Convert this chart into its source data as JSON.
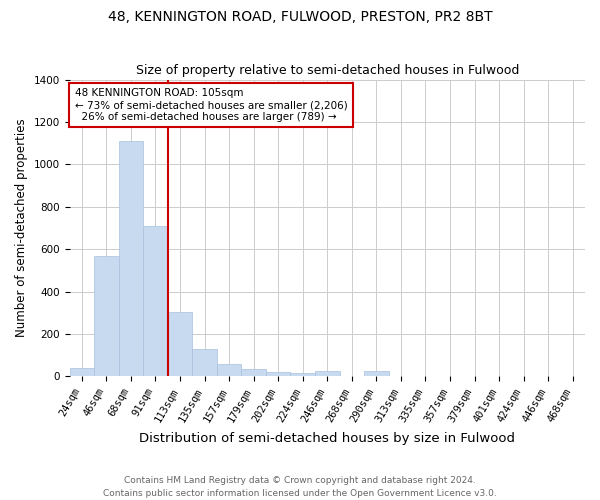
{
  "title1": "48, KENNINGTON ROAD, FULWOOD, PRESTON, PR2 8BT",
  "title2": "Size of property relative to semi-detached houses in Fulwood",
  "xlabel": "Distribution of semi-detached houses by size in Fulwood",
  "ylabel": "Number of semi-detached properties",
  "categories": [
    "24sqm",
    "46sqm",
    "68sqm",
    "91sqm",
    "113sqm",
    "135sqm",
    "157sqm",
    "179sqm",
    "202sqm",
    "224sqm",
    "246sqm",
    "268sqm",
    "290sqm",
    "313sqm",
    "335sqm",
    "357sqm",
    "379sqm",
    "401sqm",
    "424sqm",
    "446sqm",
    "468sqm"
  ],
  "values": [
    40,
    570,
    1110,
    710,
    305,
    130,
    60,
    35,
    20,
    15,
    25,
    0,
    25,
    0,
    0,
    0,
    0,
    0,
    0,
    0,
    0
  ],
  "bar_color": "#c8daf0",
  "bar_edge_color": "#a8c0dc",
  "annotation_line1": "48 KENNINGTON ROAD: 105sqm",
  "annotation_line2": "← 73% of semi-detached houses are smaller (2,206)",
  "annotation_line3": "  26% of semi-detached houses are larger (789) →",
  "annotation_box_facecolor": "#ffffff",
  "annotation_box_edgecolor": "#cc0000",
  "vline_color": "#cc0000",
  "vline_x_index": 4,
  "ylim": [
    0,
    1400
  ],
  "yticks": [
    0,
    200,
    400,
    600,
    800,
    1000,
    1200,
    1400
  ],
  "footer1": "Contains HM Land Registry data © Crown copyright and database right 2024.",
  "footer2": "Contains public sector information licensed under the Open Government Licence v3.0.",
  "bg_color": "#ffffff",
  "grid_color": "#cccccc",
  "title1_fontsize": 10,
  "title2_fontsize": 9,
  "xlabel_fontsize": 9.5,
  "ylabel_fontsize": 8.5,
  "tick_fontsize": 7.5,
  "annotation_fontsize": 7.5,
  "footer_fontsize": 6.5,
  "bar_width": 0.85
}
